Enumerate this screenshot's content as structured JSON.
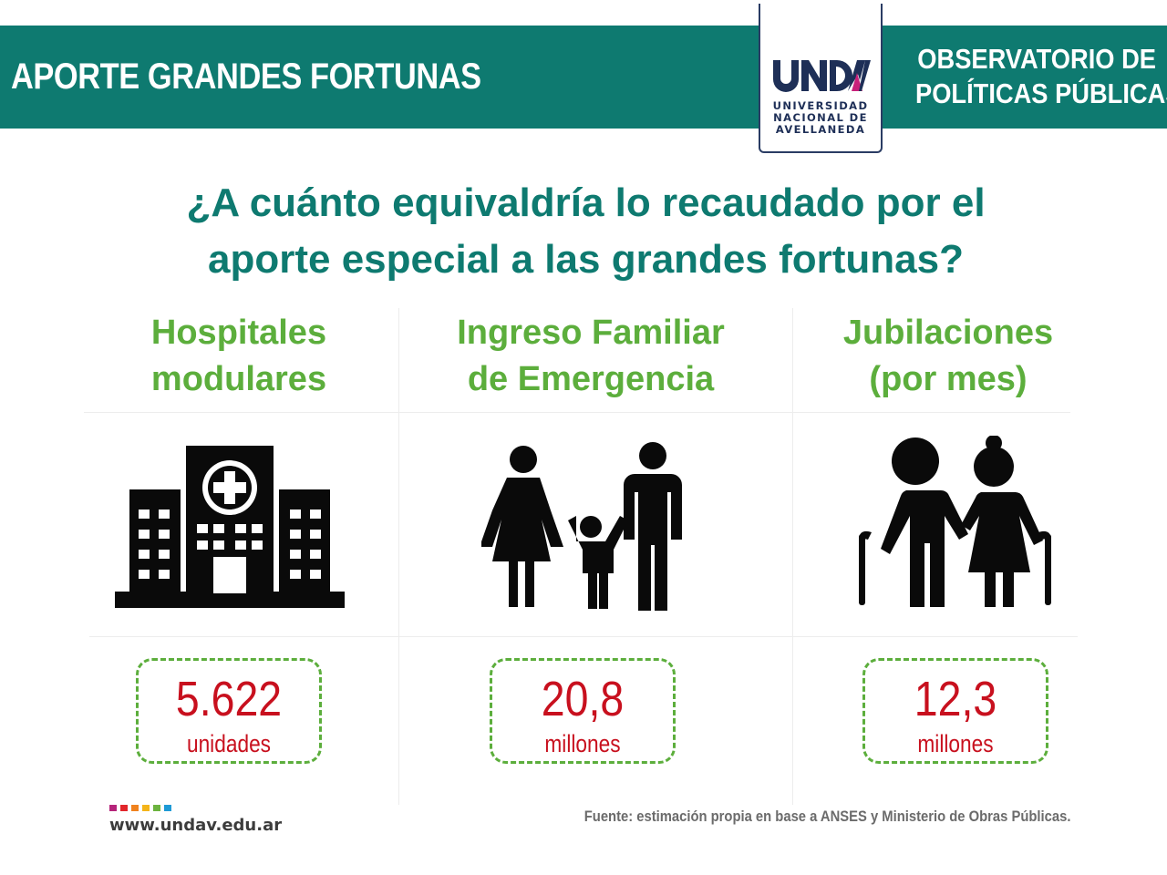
{
  "header": {
    "title": "APORTE GRANDES FORTUNAS",
    "logo": {
      "mark": "UNDAV",
      "lines": [
        "UNIVERSIDAD",
        "NACIONAL DE",
        "AVELLANEDA"
      ]
    },
    "observatory": [
      "OBSERVATORIO DE",
      "POLÍTICAS PÚBLICAS"
    ]
  },
  "question": [
    "¿A cuánto equivaldría lo recaudado por el",
    "aporte especial a las grandes fortunas?"
  ],
  "columns": [
    {
      "title": [
        "Hospitales",
        "modulares"
      ],
      "icon": "hospital-icon",
      "value": "5.622",
      "unit": "unidades"
    },
    {
      "title": [
        "Ingreso Familiar",
        "de Emergencia"
      ],
      "icon": "family-icon",
      "value": "20,8",
      "unit": "millones"
    },
    {
      "title": [
        "Jubilaciones",
        "(por mes)"
      ],
      "icon": "elderly-couple-icon",
      "value": "12,3",
      "unit": "millones"
    }
  ],
  "footer": {
    "site": "www.undav.edu.ar",
    "source": "Fuente: estimación propia en base a ANSES y Ministerio de Obras Públicas.",
    "dot_colors": [
      "#b5247a",
      "#e2262b",
      "#f0821e",
      "#f4b41a",
      "#6cb33f",
      "#1e9ad6"
    ]
  },
  "colors": {
    "teal": "#0e7a70",
    "green": "#5cae3c",
    "red": "#c8101e",
    "navy": "#1e2f57"
  }
}
